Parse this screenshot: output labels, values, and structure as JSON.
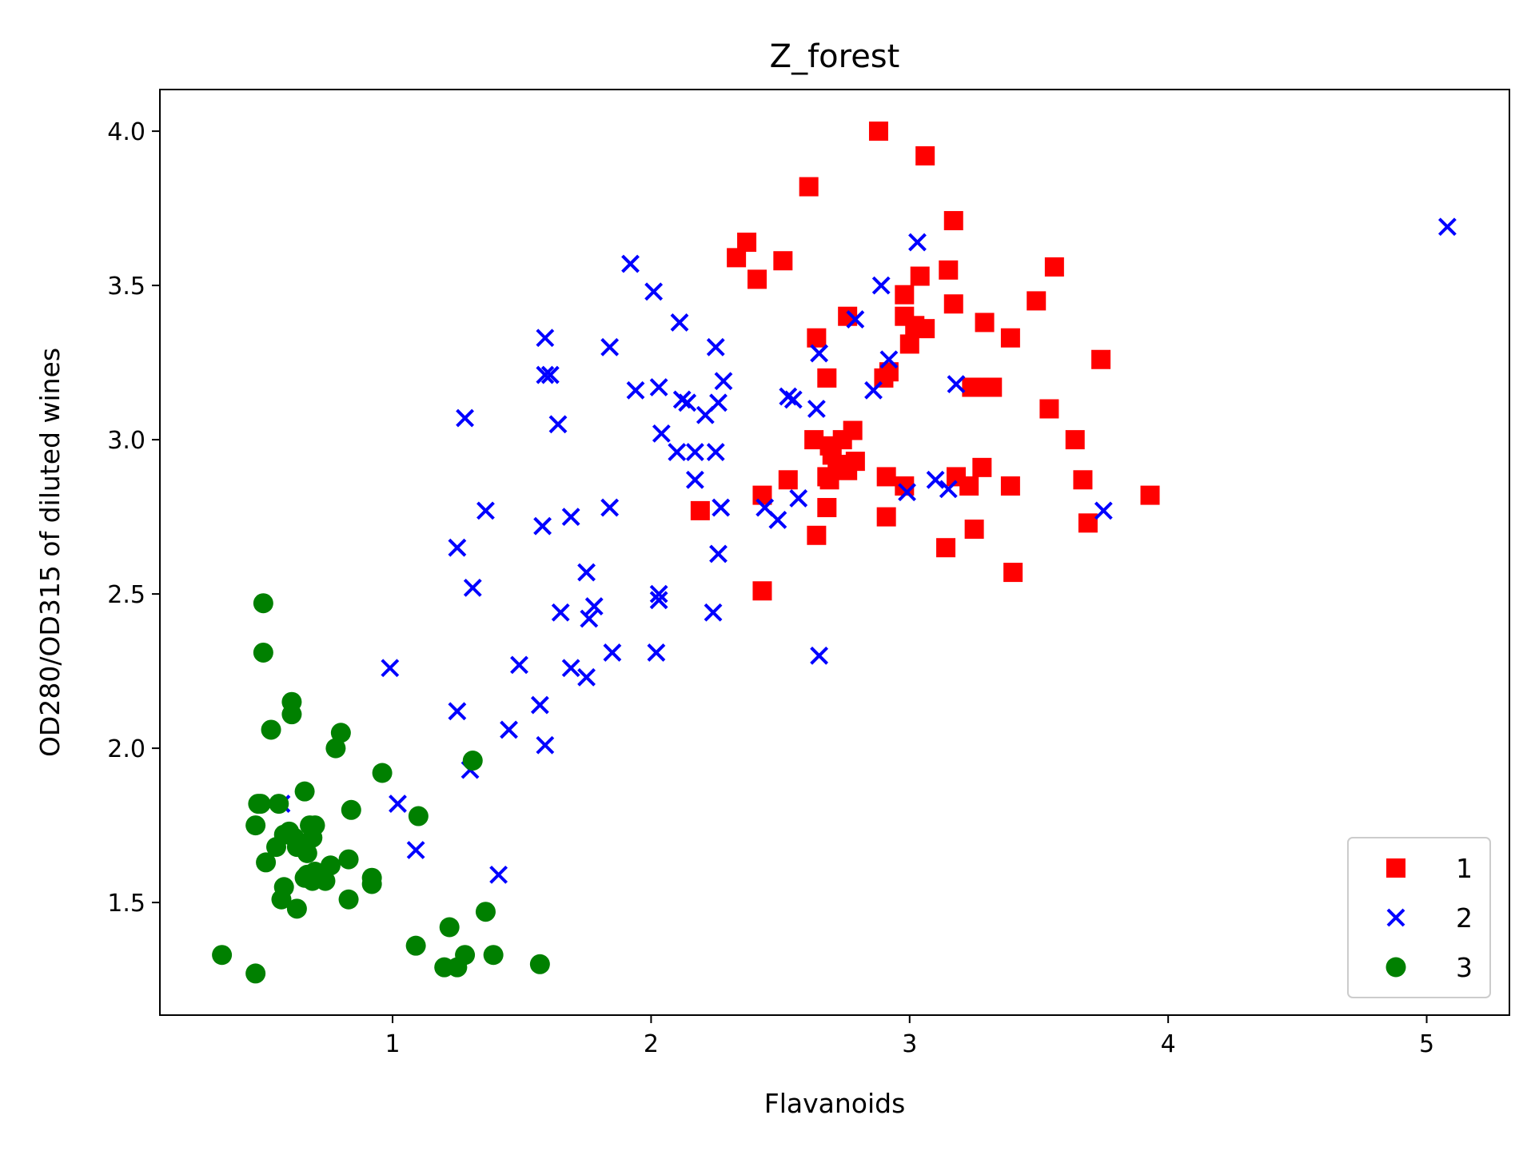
{
  "chart_data": {
    "type": "scatter",
    "title": "Z_forest",
    "xlabel": "Flavanoids",
    "ylabel": "OD280/OD315 of diluted wines",
    "xlim": [
      0.1,
      5.32
    ],
    "ylim": [
      1.135,
      4.135
    ],
    "xticks": [
      1,
      2,
      3,
      4,
      5
    ],
    "yticks": [
      1.5,
      2.0,
      2.5,
      3.0,
      3.5,
      4.0
    ],
    "xtick_labels": [
      "1",
      "2",
      "3",
      "4",
      "5"
    ],
    "ytick_labels": [
      "1.5",
      "2.0",
      "2.5",
      "3.0",
      "3.5",
      "4.0"
    ],
    "grid": false,
    "legend": {
      "position": "bottom-right"
    },
    "series": [
      {
        "name": "1",
        "marker": "square",
        "color": "#ff0000",
        "points": [
          [
            2.88,
            4.0
          ],
          [
            3.06,
            3.92
          ],
          [
            2.61,
            3.82
          ],
          [
            3.17,
            3.71
          ],
          [
            2.37,
            3.64
          ],
          [
            2.33,
            3.59
          ],
          [
            2.51,
            3.58
          ],
          [
            2.41,
            3.52
          ],
          [
            3.56,
            3.56
          ],
          [
            3.15,
            3.55
          ],
          [
            3.04,
            3.53
          ],
          [
            2.98,
            3.47
          ],
          [
            3.17,
            3.44
          ],
          [
            3.49,
            3.45
          ],
          [
            2.98,
            3.4
          ],
          [
            2.76,
            3.4
          ],
          [
            3.02,
            3.37
          ],
          [
            3.29,
            3.38
          ],
          [
            3.06,
            3.36
          ],
          [
            2.64,
            3.33
          ],
          [
            3.39,
            3.33
          ],
          [
            3.0,
            3.31
          ],
          [
            3.74,
            3.26
          ],
          [
            2.92,
            3.22
          ],
          [
            2.68,
            3.2
          ],
          [
            2.9,
            3.2
          ],
          [
            3.24,
            3.17
          ],
          [
            3.32,
            3.17
          ],
          [
            3.27,
            3.17
          ],
          [
            3.54,
            3.1
          ],
          [
            2.78,
            3.03
          ],
          [
            2.63,
            3.0
          ],
          [
            2.74,
            3.0
          ],
          [
            2.69,
            2.98
          ],
          [
            3.64,
            3.0
          ],
          [
            2.7,
            2.95
          ],
          [
            2.79,
            2.93
          ],
          [
            2.72,
            2.92
          ],
          [
            2.68,
            2.88
          ],
          [
            2.76,
            2.9
          ],
          [
            3.28,
            2.91
          ],
          [
            3.18,
            2.88
          ],
          [
            2.69,
            2.87
          ],
          [
            2.53,
            2.87
          ],
          [
            2.91,
            2.88
          ],
          [
            3.67,
            2.87
          ],
          [
            3.23,
            2.85
          ],
          [
            2.98,
            2.85
          ],
          [
            3.39,
            2.85
          ],
          [
            3.93,
            2.82
          ],
          [
            2.43,
            2.82
          ],
          [
            2.68,
            2.78
          ],
          [
            2.19,
            2.77
          ],
          [
            2.91,
            2.75
          ],
          [
            3.69,
            2.73
          ],
          [
            3.25,
            2.71
          ],
          [
            2.64,
            2.69
          ],
          [
            3.14,
            2.65
          ],
          [
            3.4,
            2.57
          ],
          [
            2.43,
            2.51
          ]
        ]
      },
      {
        "name": "2",
        "marker": "x",
        "color": "#0000ff",
        "points": [
          [
            5.08,
            3.69
          ],
          [
            3.03,
            3.64
          ],
          [
            1.92,
            3.57
          ],
          [
            2.89,
            3.5
          ],
          [
            2.01,
            3.48
          ],
          [
            2.79,
            3.39
          ],
          [
            2.11,
            3.38
          ],
          [
            1.84,
            3.3
          ],
          [
            2.25,
            3.3
          ],
          [
            1.59,
            3.33
          ],
          [
            2.65,
            3.28
          ],
          [
            2.92,
            3.26
          ],
          [
            1.59,
            3.21
          ],
          [
            1.61,
            3.21
          ],
          [
            2.28,
            3.19
          ],
          [
            3.18,
            3.18
          ],
          [
            2.03,
            3.17
          ],
          [
            1.94,
            3.16
          ],
          [
            2.86,
            3.16
          ],
          [
            2.53,
            3.14
          ],
          [
            2.55,
            3.13
          ],
          [
            2.12,
            3.13
          ],
          [
            2.14,
            3.12
          ],
          [
            2.26,
            3.12
          ],
          [
            2.64,
            3.1
          ],
          [
            2.21,
            3.08
          ],
          [
            1.28,
            3.07
          ],
          [
            1.64,
            3.05
          ],
          [
            2.04,
            3.02
          ],
          [
            2.1,
            2.96
          ],
          [
            2.17,
            2.96
          ],
          [
            2.25,
            2.96
          ],
          [
            3.1,
            2.87
          ],
          [
            2.17,
            2.87
          ],
          [
            3.15,
            2.84
          ],
          [
            2.99,
            2.83
          ],
          [
            2.57,
            2.81
          ],
          [
            2.44,
            2.78
          ],
          [
            1.84,
            2.78
          ],
          [
            2.27,
            2.78
          ],
          [
            1.36,
            2.77
          ],
          [
            3.75,
            2.77
          ],
          [
            1.69,
            2.75
          ],
          [
            2.49,
            2.74
          ],
          [
            1.58,
            2.72
          ],
          [
            1.25,
            2.65
          ],
          [
            2.26,
            2.63
          ],
          [
            1.75,
            2.57
          ],
          [
            1.31,
            2.52
          ],
          [
            2.03,
            2.5
          ],
          [
            2.03,
            2.48
          ],
          [
            1.78,
            2.46
          ],
          [
            1.65,
            2.44
          ],
          [
            2.24,
            2.44
          ],
          [
            1.76,
            2.42
          ],
          [
            2.65,
            2.3
          ],
          [
            1.85,
            2.31
          ],
          [
            2.02,
            2.31
          ],
          [
            1.49,
            2.27
          ],
          [
            1.69,
            2.26
          ],
          [
            0.99,
            2.26
          ],
          [
            1.75,
            2.23
          ],
          [
            1.57,
            2.14
          ],
          [
            1.25,
            2.12
          ],
          [
            1.45,
            2.06
          ],
          [
            1.59,
            2.01
          ],
          [
            1.3,
            1.93
          ],
          [
            1.02,
            1.82
          ],
          [
            0.57,
            1.82
          ],
          [
            1.09,
            1.67
          ],
          [
            1.41,
            1.59
          ]
        ]
      },
      {
        "name": "3",
        "marker": "circle",
        "color": "#008000",
        "points": [
          [
            0.5,
            2.47
          ],
          [
            0.5,
            2.31
          ],
          [
            0.61,
            2.15
          ],
          [
            0.61,
            2.11
          ],
          [
            0.53,
            2.06
          ],
          [
            0.8,
            2.05
          ],
          [
            0.78,
            2.0
          ],
          [
            1.31,
            1.96
          ],
          [
            0.96,
            1.92
          ],
          [
            0.66,
            1.86
          ],
          [
            0.49,
            1.82
          ],
          [
            0.48,
            1.82
          ],
          [
            0.56,
            1.82
          ],
          [
            0.84,
            1.8
          ],
          [
            1.1,
            1.78
          ],
          [
            0.47,
            1.75
          ],
          [
            0.68,
            1.75
          ],
          [
            0.7,
            1.75
          ],
          [
            0.6,
            1.73
          ],
          [
            0.58,
            1.72
          ],
          [
            0.62,
            1.71
          ],
          [
            0.69,
            1.71
          ],
          [
            0.55,
            1.68
          ],
          [
            0.63,
            1.68
          ],
          [
            0.67,
            1.66
          ],
          [
            0.83,
            1.64
          ],
          [
            0.51,
            1.63
          ],
          [
            0.76,
            1.62
          ],
          [
            0.7,
            1.6
          ],
          [
            0.67,
            1.59
          ],
          [
            0.92,
            1.58
          ],
          [
            0.66,
            1.58
          ],
          [
            0.69,
            1.57
          ],
          [
            0.74,
            1.57
          ],
          [
            0.92,
            1.56
          ],
          [
            0.58,
            1.55
          ],
          [
            0.57,
            1.51
          ],
          [
            0.83,
            1.51
          ],
          [
            0.63,
            1.48
          ],
          [
            1.36,
            1.47
          ],
          [
            1.22,
            1.42
          ],
          [
            1.09,
            1.36
          ],
          [
            0.34,
            1.33
          ],
          [
            1.28,
            1.33
          ],
          [
            1.39,
            1.33
          ],
          [
            1.57,
            1.3
          ],
          [
            1.2,
            1.29
          ],
          [
            1.25,
            1.29
          ],
          [
            0.47,
            1.27
          ]
        ]
      }
    ]
  }
}
